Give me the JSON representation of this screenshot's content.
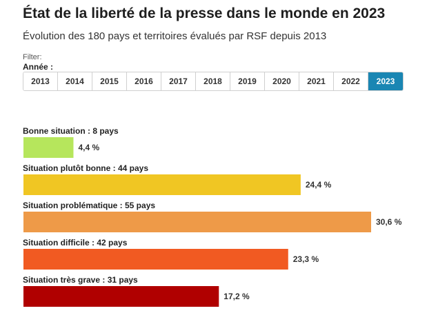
{
  "title": "État de la liberté de la presse dans le monde en 2023",
  "subtitle": "Évolution des 180 pays et territoires évalués par RSF depuis 2013",
  "filter": {
    "label": "Filter:",
    "year_label": "Année :",
    "years": [
      "2013",
      "2014",
      "2015",
      "2016",
      "2017",
      "2018",
      "2019",
      "2020",
      "2021",
      "2022",
      "2023"
    ],
    "selected": "2023"
  },
  "chart_data": {
    "type": "bar",
    "orientation": "horizontal",
    "unit": "%",
    "xlim": [
      0,
      30.6
    ],
    "categories": [
      "Bonne situation : 8 pays",
      "Situation plutôt bonne : 44 pays",
      "Situation problématique : 55 pays",
      "Situation difficile : 42 pays",
      "Situation très grave : 31 pays"
    ],
    "values": [
      4.4,
      24.4,
      30.6,
      23.3,
      17.2
    ],
    "value_labels": [
      "4,4 %",
      "24,4 %",
      "30,6 %",
      "23,3 %",
      "17,2 %"
    ],
    "colors": [
      "#b6e65c",
      "#f0c623",
      "#ee9a48",
      "#f15a22",
      "#b00000"
    ],
    "grid": false,
    "legend": "none"
  }
}
